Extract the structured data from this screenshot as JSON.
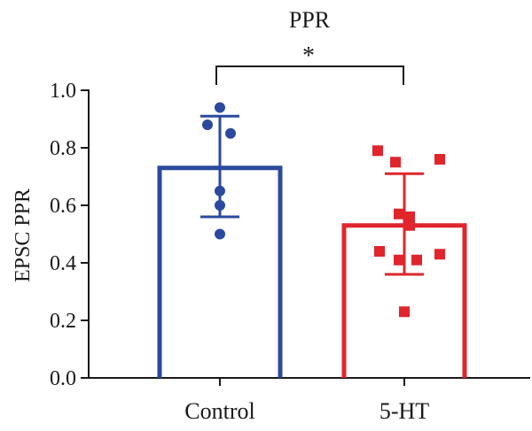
{
  "chart_data": {
    "type": "bar",
    "title": "PPR",
    "ylabel": "EPSC PPR",
    "xlabel": "",
    "ylim": [
      0,
      1.0
    ],
    "yticks": [
      "0.0",
      "0.2",
      "0.4",
      "0.6",
      "0.8",
      "1.0"
    ],
    "categories": [
      "Control",
      "5-HT"
    ],
    "series": [
      {
        "values": [
          0.73,
          0.53
        ],
        "error_high": [
          0.91,
          0.71
        ],
        "error_low": [
          0.56,
          0.36
        ],
        "colors": [
          "#2b4a9e",
          "#e0252d"
        ],
        "markers": [
          "circle",
          "square"
        ]
      }
    ],
    "points": [
      [
        0.94,
        0.88,
        0.85,
        0.65,
        0.6,
        0.5
      ],
      [
        0.79,
        0.75,
        0.76,
        0.57,
        0.56,
        0.53,
        0.44,
        0.41,
        0.41,
        0.43,
        0.23
      ]
    ],
    "significance": {
      "between": [
        0,
        1
      ],
      "label": "*"
    },
    "grid": false,
    "legend": "none"
  }
}
